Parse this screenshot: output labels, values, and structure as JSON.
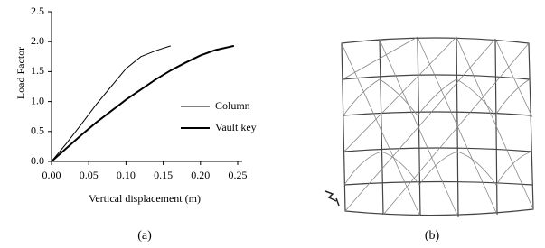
{
  "chart_data": {
    "type": "line",
    "x_label": "Vertical displacement (m)",
    "y_label": "Load Factor",
    "x": [
      0,
      0.02,
      0.04,
      0.06,
      0.08,
      0.1,
      0.12,
      0.14,
      0.16,
      0.18,
      0.2,
      0.22,
      0.245
    ],
    "series": [
      {
        "name": "Column",
        "color": "#000000",
        "width": 1,
        "values": [
          0,
          0.3,
          0.62,
          0.95,
          1.25,
          1.55,
          1.75,
          1.85,
          1.93,
          null,
          null,
          null,
          null
        ]
      },
      {
        "name": "Vault key",
        "color": "#000000",
        "width": 2,
        "values": [
          0,
          0.22,
          0.44,
          0.65,
          0.84,
          1.03,
          1.2,
          1.37,
          1.52,
          1.65,
          1.77,
          1.86,
          1.93
        ]
      }
    ],
    "xlim": [
      0,
      0.25
    ],
    "xticks": [
      {
        "value": 0,
        "label": "0.00"
      },
      {
        "value": 0.05,
        "label": "0.05"
      },
      {
        "value": 0.1,
        "label": "0.10"
      },
      {
        "value": 0.15,
        "label": "0.15"
      },
      {
        "value": 0.2,
        "label": "0.20"
      },
      {
        "value": 0.25,
        "label": "0.25"
      }
    ],
    "ylim": [
      0,
      2.5
    ],
    "yticks": [
      {
        "value": 0,
        "label": "0.0"
      },
      0.5,
      {
        "value": 1,
        "label": "1.0"
      },
      1.5,
      {
        "value": 2,
        "label": "2.0"
      },
      2.5
    ],
    "grid": false,
    "legend": "lower right"
  },
  "captions": [
    "(a)",
    "(b)"
  ]
}
